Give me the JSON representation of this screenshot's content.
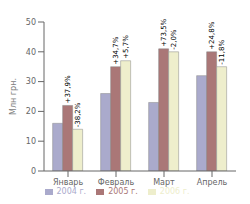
{
  "chart_data": {
    "type": "bar",
    "categories": [
      "Январь",
      "Февраль",
      "Март",
      "Апрель"
    ],
    "series": [
      {
        "name": "2004 г.",
        "color": "#aaaacc",
        "values": [
          16,
          26,
          23,
          32
        ]
      },
      {
        "name": "2005 г.",
        "color": "#aa7777",
        "values": [
          22,
          35,
          41,
          40
        ]
      },
      {
        "name": "2006 г.",
        "color": "#eeeecc",
        "values": [
          14,
          37,
          40,
          35
        ]
      }
    ],
    "annotations": [
      {
        "series": "2005 г.",
        "category": "Январь",
        "text": "+37,9%"
      },
      {
        "series": "2006 г.",
        "category": "Январь",
        "text": "-38,2%"
      },
      {
        "series": "2005 г.",
        "category": "Февраль",
        "text": "+34,7%"
      },
      {
        "series": "2006 г.",
        "category": "Февраль",
        "text": "+5,7%"
      },
      {
        "series": "2005 г.",
        "category": "Март",
        "text": "+73,5%"
      },
      {
        "series": "2006 г.",
        "category": "Март",
        "text": "-2,0%"
      },
      {
        "series": "2005 г.",
        "category": "Апрель",
        "text": "+24,8%"
      },
      {
        "series": "2006 г.",
        "category": "Апрель",
        "text": "-11,8%"
      }
    ],
    "ylabel": "Млн грн.",
    "ylim": [
      0,
      50
    ],
    "yticks": [
      0,
      10,
      20,
      30,
      40,
      50
    ],
    "grid": false,
    "legend": "bottom"
  }
}
